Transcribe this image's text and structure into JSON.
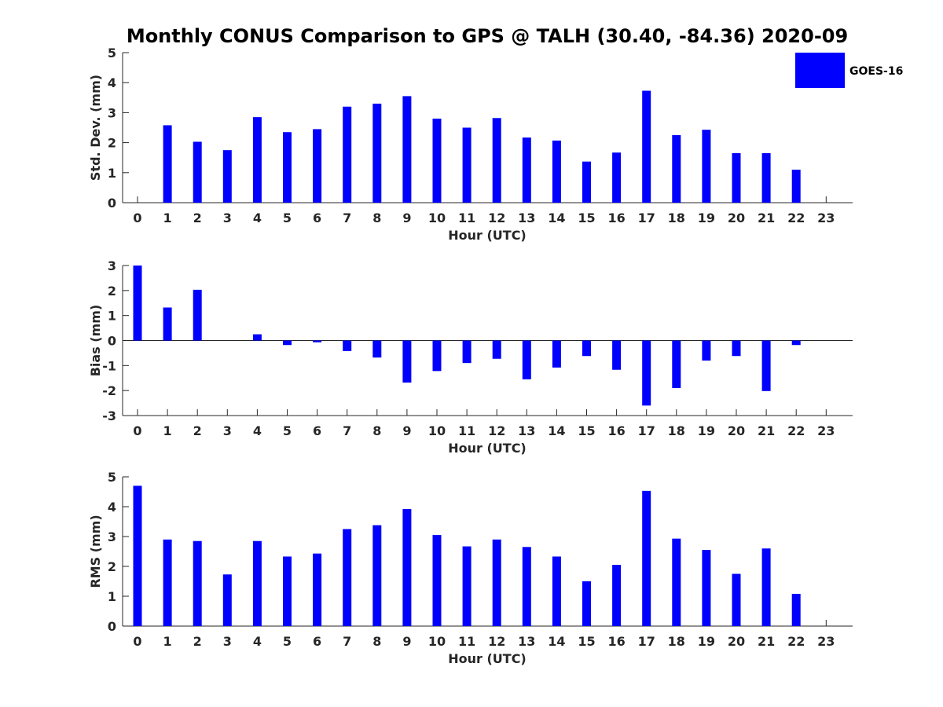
{
  "figure": {
    "title": "Monthly CONUS Comparison to GPS @ TALH (30.40, -84.36) 2020-09",
    "legend": {
      "label": "GOES-16",
      "color": "#0000ff",
      "placement": "top-right"
    }
  },
  "chart_data": [
    {
      "type": "bar",
      "xlabel": "Hour (UTC)",
      "ylabel": "Std. Dev. (mm)",
      "ylim": [
        0,
        5
      ],
      "yticks": [
        0,
        1,
        2,
        3,
        4,
        5
      ],
      "categories": [
        "0",
        "1",
        "2",
        "3",
        "4",
        "5",
        "6",
        "7",
        "8",
        "9",
        "10",
        "11",
        "12",
        "13",
        "14",
        "15",
        "16",
        "17",
        "18",
        "19",
        "20",
        "21",
        "22",
        "23"
      ],
      "series": [
        {
          "name": "GOES-16",
          "color": "#0000ff",
          "values": [
            null,
            2.58,
            2.03,
            1.75,
            2.85,
            2.35,
            2.45,
            3.2,
            3.3,
            3.55,
            2.8,
            2.5,
            2.82,
            2.17,
            2.07,
            1.37,
            1.67,
            3.73,
            2.25,
            2.43,
            1.65,
            1.65,
            1.1,
            null
          ]
        }
      ],
      "grid": false
    },
    {
      "type": "bar",
      "xlabel": "Hour (UTC)",
      "ylabel": "Bias (mm)",
      "ylim": [
        -3,
        3
      ],
      "yticks": [
        -3,
        -2,
        -1,
        0,
        1,
        2,
        3
      ],
      "categories": [
        "0",
        "1",
        "2",
        "3",
        "4",
        "5",
        "6",
        "7",
        "8",
        "9",
        "10",
        "11",
        "12",
        "13",
        "14",
        "15",
        "16",
        "17",
        "18",
        "19",
        "20",
        "21",
        "22",
        "23"
      ],
      "series": [
        {
          "name": "GOES-16",
          "color": "#0000ff",
          "values": [
            3.0,
            1.32,
            2.03,
            0,
            0.25,
            -0.18,
            -0.07,
            -0.42,
            -0.68,
            -1.68,
            -1.22,
            -0.9,
            -0.73,
            -1.55,
            -1.08,
            -0.62,
            -1.17,
            -2.6,
            -1.9,
            -0.8,
            -0.62,
            -2.02,
            -0.18,
            null
          ]
        }
      ],
      "grid": false
    },
    {
      "type": "bar",
      "xlabel": "Hour (UTC)",
      "ylabel": "RMS (mm)",
      "ylim": [
        0,
        5
      ],
      "yticks": [
        0,
        1,
        2,
        3,
        4,
        5
      ],
      "categories": [
        "0",
        "1",
        "2",
        "3",
        "4",
        "5",
        "6",
        "7",
        "8",
        "9",
        "10",
        "11",
        "12",
        "13",
        "14",
        "15",
        "16",
        "17",
        "18",
        "19",
        "20",
        "21",
        "22",
        "23"
      ],
      "series": [
        {
          "name": "GOES-16",
          "color": "#0000ff",
          "values": [
            4.7,
            2.9,
            2.85,
            1.73,
            2.85,
            2.33,
            2.43,
            3.25,
            3.38,
            3.92,
            3.05,
            2.67,
            2.9,
            2.65,
            2.33,
            1.5,
            2.05,
            4.53,
            2.93,
            2.55,
            1.75,
            2.6,
            1.08,
            null
          ]
        }
      ],
      "grid": false
    }
  ]
}
